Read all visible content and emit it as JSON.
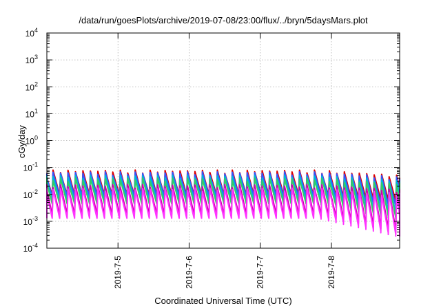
{
  "chart_data": {
    "type": "line",
    "title": "/data/run/goesPlots/archive/2019-07-08/23:00/flux/../bryn/5daysMars.plot",
    "xlabel": "Coordinated Universal Time (UTC)",
    "ylabel": "cGy/day",
    "y_scale": "log",
    "ylim": [
      0.0001,
      10000
    ],
    "y_ticks": [
      {
        "value": 0.0001,
        "base": "10",
        "exp": "-4"
      },
      {
        "value": 0.001,
        "base": "10",
        "exp": "-3"
      },
      {
        "value": 0.01,
        "base": "10",
        "exp": "-2"
      },
      {
        "value": 0.1,
        "base": "10",
        "exp": "-1"
      },
      {
        "value": 1,
        "base": "10",
        "exp": "0"
      },
      {
        "value": 10,
        "base": "10",
        "exp": "1"
      },
      {
        "value": 100,
        "base": "10",
        "exp": "2"
      },
      {
        "value": 1000,
        "base": "10",
        "exp": "3"
      },
      {
        "value": 10000,
        "base": "10",
        "exp": "4"
      }
    ],
    "x_range_days": [
      0,
      4.96
    ],
    "x_ticks": [
      {
        "day": 1,
        "label": "2019-7-5"
      },
      {
        "day": 2,
        "label": "2019-7-6"
      },
      {
        "day": 3,
        "label": "2019-7-7"
      },
      {
        "day": 4,
        "label": "2019-7-8"
      }
    ],
    "grid": true,
    "pulse_period_days": 0.105,
    "series": [
      {
        "color": "#dd0000",
        "peak": 0.07,
        "trough": 0.0095,
        "late_trough": 0.0055
      },
      {
        "color": "#3355ff",
        "peak": 0.06,
        "trough": 0.0085,
        "late_trough": 0.0035
      },
      {
        "color": "#00b8d8",
        "peak": 0.045,
        "trough": 0.006,
        "late_trough": 0.0018
      },
      {
        "color": "#33cc66",
        "peak": 0.035,
        "trough": 0.0045,
        "late_trough": 0.0012
      },
      {
        "color": "#cc00aa",
        "peak": 0.02,
        "trough": 0.0018,
        "late_trough": 0.0004
      },
      {
        "color": "#ff33ff",
        "peak": 0.015,
        "trough": 0.0013,
        "late_trough": 0.00028
      }
    ]
  }
}
